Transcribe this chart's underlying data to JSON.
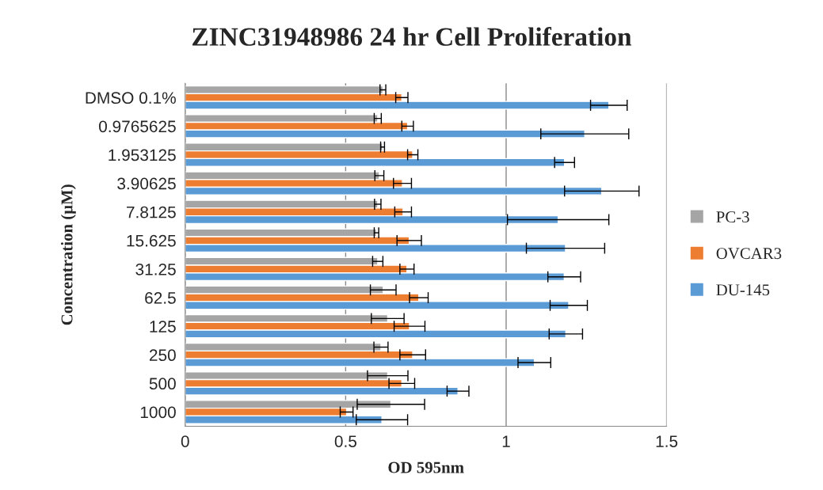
{
  "chart_data": {
    "type": "bar",
    "orientation": "horizontal",
    "title": "ZINC31948986 24 hr Cell Proliferation",
    "xlabel": "OD 595nm",
    "ylabel": "Concentration (μM)",
    "categories": [
      "DMSO 0.1%",
      "0.9765625",
      "1.953125",
      "3.90625",
      "7.8125",
      "15.625",
      "31.25",
      "62.5",
      "125",
      "250",
      "500",
      "1000"
    ],
    "series": [
      {
        "name": "PC-3",
        "color": "#a5a5a5",
        "values": [
          0.616,
          0.6,
          0.615,
          0.605,
          0.6,
          0.596,
          0.6,
          0.617,
          0.631,
          0.61,
          0.631,
          0.641
        ],
        "errors": [
          0.009,
          0.011,
          0.006,
          0.014,
          0.01,
          0.007,
          0.016,
          0.04,
          0.051,
          0.022,
          0.063,
          0.105
        ]
      },
      {
        "name": "OVCAR3",
        "color": "#ed7d31",
        "values": [
          0.675,
          0.693,
          0.709,
          0.677,
          0.679,
          0.698,
          0.691,
          0.728,
          0.699,
          0.709,
          0.675,
          0.503
        ],
        "errors": [
          0.019,
          0.018,
          0.016,
          0.028,
          0.026,
          0.038,
          0.022,
          0.029,
          0.048,
          0.04,
          0.04,
          0.02
        ]
      },
      {
        "name": "DU-145",
        "color": "#5b9bd5",
        "values": [
          1.32,
          1.245,
          1.182,
          1.298,
          1.162,
          1.185,
          1.181,
          1.195,
          1.186,
          1.088,
          0.85,
          0.613
        ],
        "errors": [
          0.057,
          0.137,
          0.031,
          0.116,
          0.158,
          0.122,
          0.051,
          0.058,
          0.052,
          0.051,
          0.034,
          0.08
        ]
      }
    ],
    "xlim": [
      0,
      1.5
    ],
    "xticks": [
      0,
      0.5,
      1,
      1.5
    ],
    "grid": "x",
    "legend": "right"
  }
}
